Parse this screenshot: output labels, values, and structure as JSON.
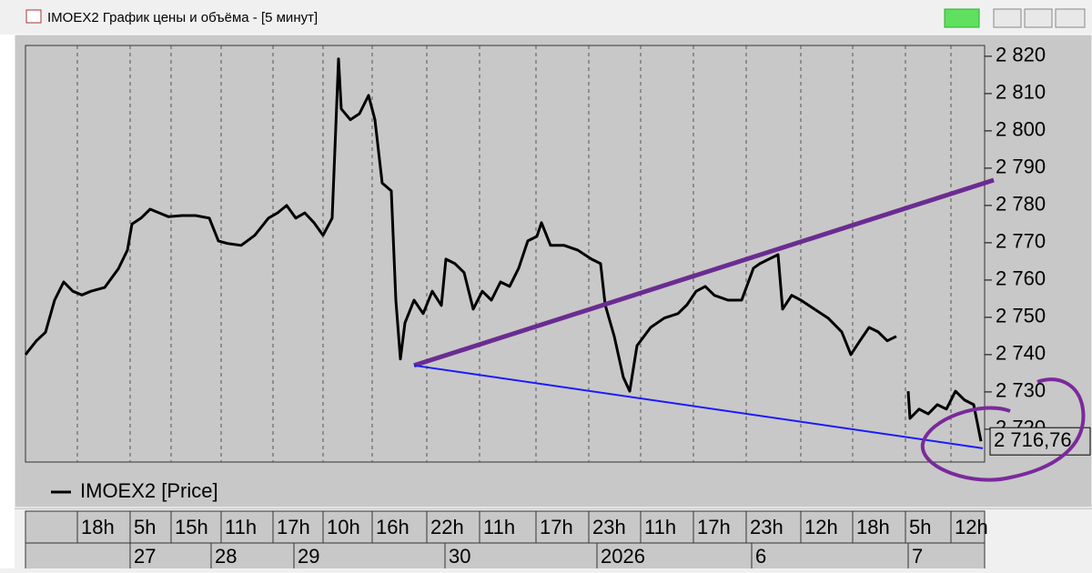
{
  "window_title": "IMOEX2 График цены и объёма - [5 минут]",
  "chart_data": {
    "type": "line",
    "x": [
      0,
      12,
      22,
      32,
      42,
      52,
      62,
      72,
      87,
      102,
      112,
      117,
      127,
      137,
      147,
      157,
      172,
      187,
      202,
      212,
      222,
      237,
      252,
      267,
      277,
      287,
      297,
      307,
      317,
      327,
      337,
      344,
      347,
      357,
      367,
      377,
      384,
      392,
      402,
      407,
      412,
      417,
      427,
      437,
      447,
      457,
      462,
      472,
      482,
      492,
      502,
      512,
      522,
      532,
      542,
      552,
      562,
      567,
      577,
      592,
      607,
      622,
      632,
      637,
      647,
      657,
      664,
      672,
      687,
      702,
      717,
      727,
      737,
      747,
      757,
      772,
      787,
      800,
      807,
      817,
      827,
      832,
      842,
      852,
      867,
      882,
      897,
      907,
      917,
      927,
      937,
      947,
      957,
      968,
      970,
      972,
      982,
      992,
      1002,
      1012,
      1022,
      1032,
      1042,
      1050
    ],
    "series": [
      {
        "name": "IMOEX2 [Price]",
        "color": "#000000",
        "values": [
          2740.0,
          2743.7,
          2746.0,
          2754.6,
          2759.5,
          2757.0,
          2756.0,
          2757.0,
          2758.0,
          2763.0,
          2768.0,
          2775.0,
          2776.6,
          2779.0,
          2778.0,
          2777.0,
          2777.3,
          2777.3,
          2776.6,
          2770.5,
          2769.8,
          2769.3,
          2772.0,
          2776.6,
          2778.0,
          2780.0,
          2776.6,
          2778.0,
          2775.4,
          2772.0,
          2776.6,
          2819.3,
          2805.9,
          2803.0,
          2804.6,
          2809.5,
          2803.0,
          2786.0,
          2783.9,
          2754.6,
          2738.8,
          2748.5,
          2754.6,
          2751.0,
          2757.0,
          2753.2,
          2765.6,
          2764.4,
          2762.0,
          2752.2,
          2757.0,
          2754.6,
          2759.5,
          2758.3,
          2763.2,
          2770.5,
          2771.7,
          2775.4,
          2769.3,
          2769.3,
          2768.0,
          2765.6,
          2764.4,
          2753.4,
          2744.9,
          2733.9,
          2730.2,
          2742.4,
          2747.3,
          2749.8,
          2751.0,
          2753.4,
          2757.0,
          2758.3,
          2755.9,
          2754.6,
          2754.6,
          2763.2,
          2764.4,
          2765.6,
          2766.8,
          2752.2,
          2755.9,
          2754.6,
          2752.2,
          2749.8,
          2746.1,
          2740.0,
          2743.7,
          2747.3,
          2746.1,
          2743.7,
          2744.9,
          null,
          2730.2,
          2722.9,
          2725.4,
          2724.1,
          2726.6,
          2725.4,
          2730.2,
          2727.8,
          2726.6,
          2716.76
        ]
      }
    ],
    "trend_lines": [
      {
        "color": "#6a2c91",
        "x": [
          427,
          1064
        ],
        "values": [
          2737.1,
          2786.8
        ]
      },
      {
        "color": "#1a1aff",
        "x": [
          427,
          1052
        ],
        "values": [
          2737.1,
          2714.9
        ]
      }
    ],
    "last_price": {
      "value": 2716.76,
      "label": "2 716,76"
    },
    "xlim": [
      0,
      1054
    ],
    "ylim": [
      2711.2,
      2822.9
    ],
    "yticks": [
      {
        "value": 2720,
        "label": "2 720"
      },
      {
        "value": 2730,
        "label": "2 730"
      },
      {
        "value": 2740,
        "label": "2 740"
      },
      {
        "value": 2750,
        "label": "2 750"
      },
      {
        "value": 2760,
        "label": "2 760"
      },
      {
        "value": 2770,
        "label": "2 770"
      },
      {
        "value": 2780,
        "label": "2 780"
      },
      {
        "value": 2790,
        "label": "2 790"
      },
      {
        "value": 2800,
        "label": "2 800"
      },
      {
        "value": 2810,
        "label": "2 810"
      },
      {
        "value": 2820,
        "label": "2 820"
      }
    ],
    "xticks": [
      {
        "value": 57,
        "label": "18h"
      },
      {
        "value": 115,
        "label": "5h"
      },
      {
        "value": 160,
        "label": "15h"
      },
      {
        "value": 215,
        "label": "11h"
      },
      {
        "value": 272,
        "label": "17h"
      },
      {
        "value": 327,
        "label": "10h"
      },
      {
        "value": 381,
        "label": "16h"
      },
      {
        "value": 441,
        "label": "22h"
      },
      {
        "value": 499,
        "label": "11h"
      },
      {
        "value": 561,
        "label": "17h"
      },
      {
        "value": 619,
        "label": "23h"
      },
      {
        "value": 676,
        "label": "11h"
      },
      {
        "value": 734,
        "label": "17h"
      },
      {
        "value": 792,
        "label": "23h"
      },
      {
        "value": 852,
        "label": "12h"
      },
      {
        "value": 909,
        "label": "18h"
      },
      {
        "value": 967,
        "label": "5h"
      },
      {
        "value": 1017,
        "label": "12h"
      }
    ],
    "xticks_dates": [
      {
        "value": 115,
        "label": "27"
      },
      {
        "value": 204,
        "label": "28"
      },
      {
        "value": 295,
        "label": "29"
      },
      {
        "value": 461,
        "label": "30"
      },
      {
        "value": 628,
        "label": "2026"
      },
      {
        "value": 798,
        "label": "6"
      },
      {
        "value": 970,
        "label": "7"
      }
    ],
    "grid": "x"
  }
}
